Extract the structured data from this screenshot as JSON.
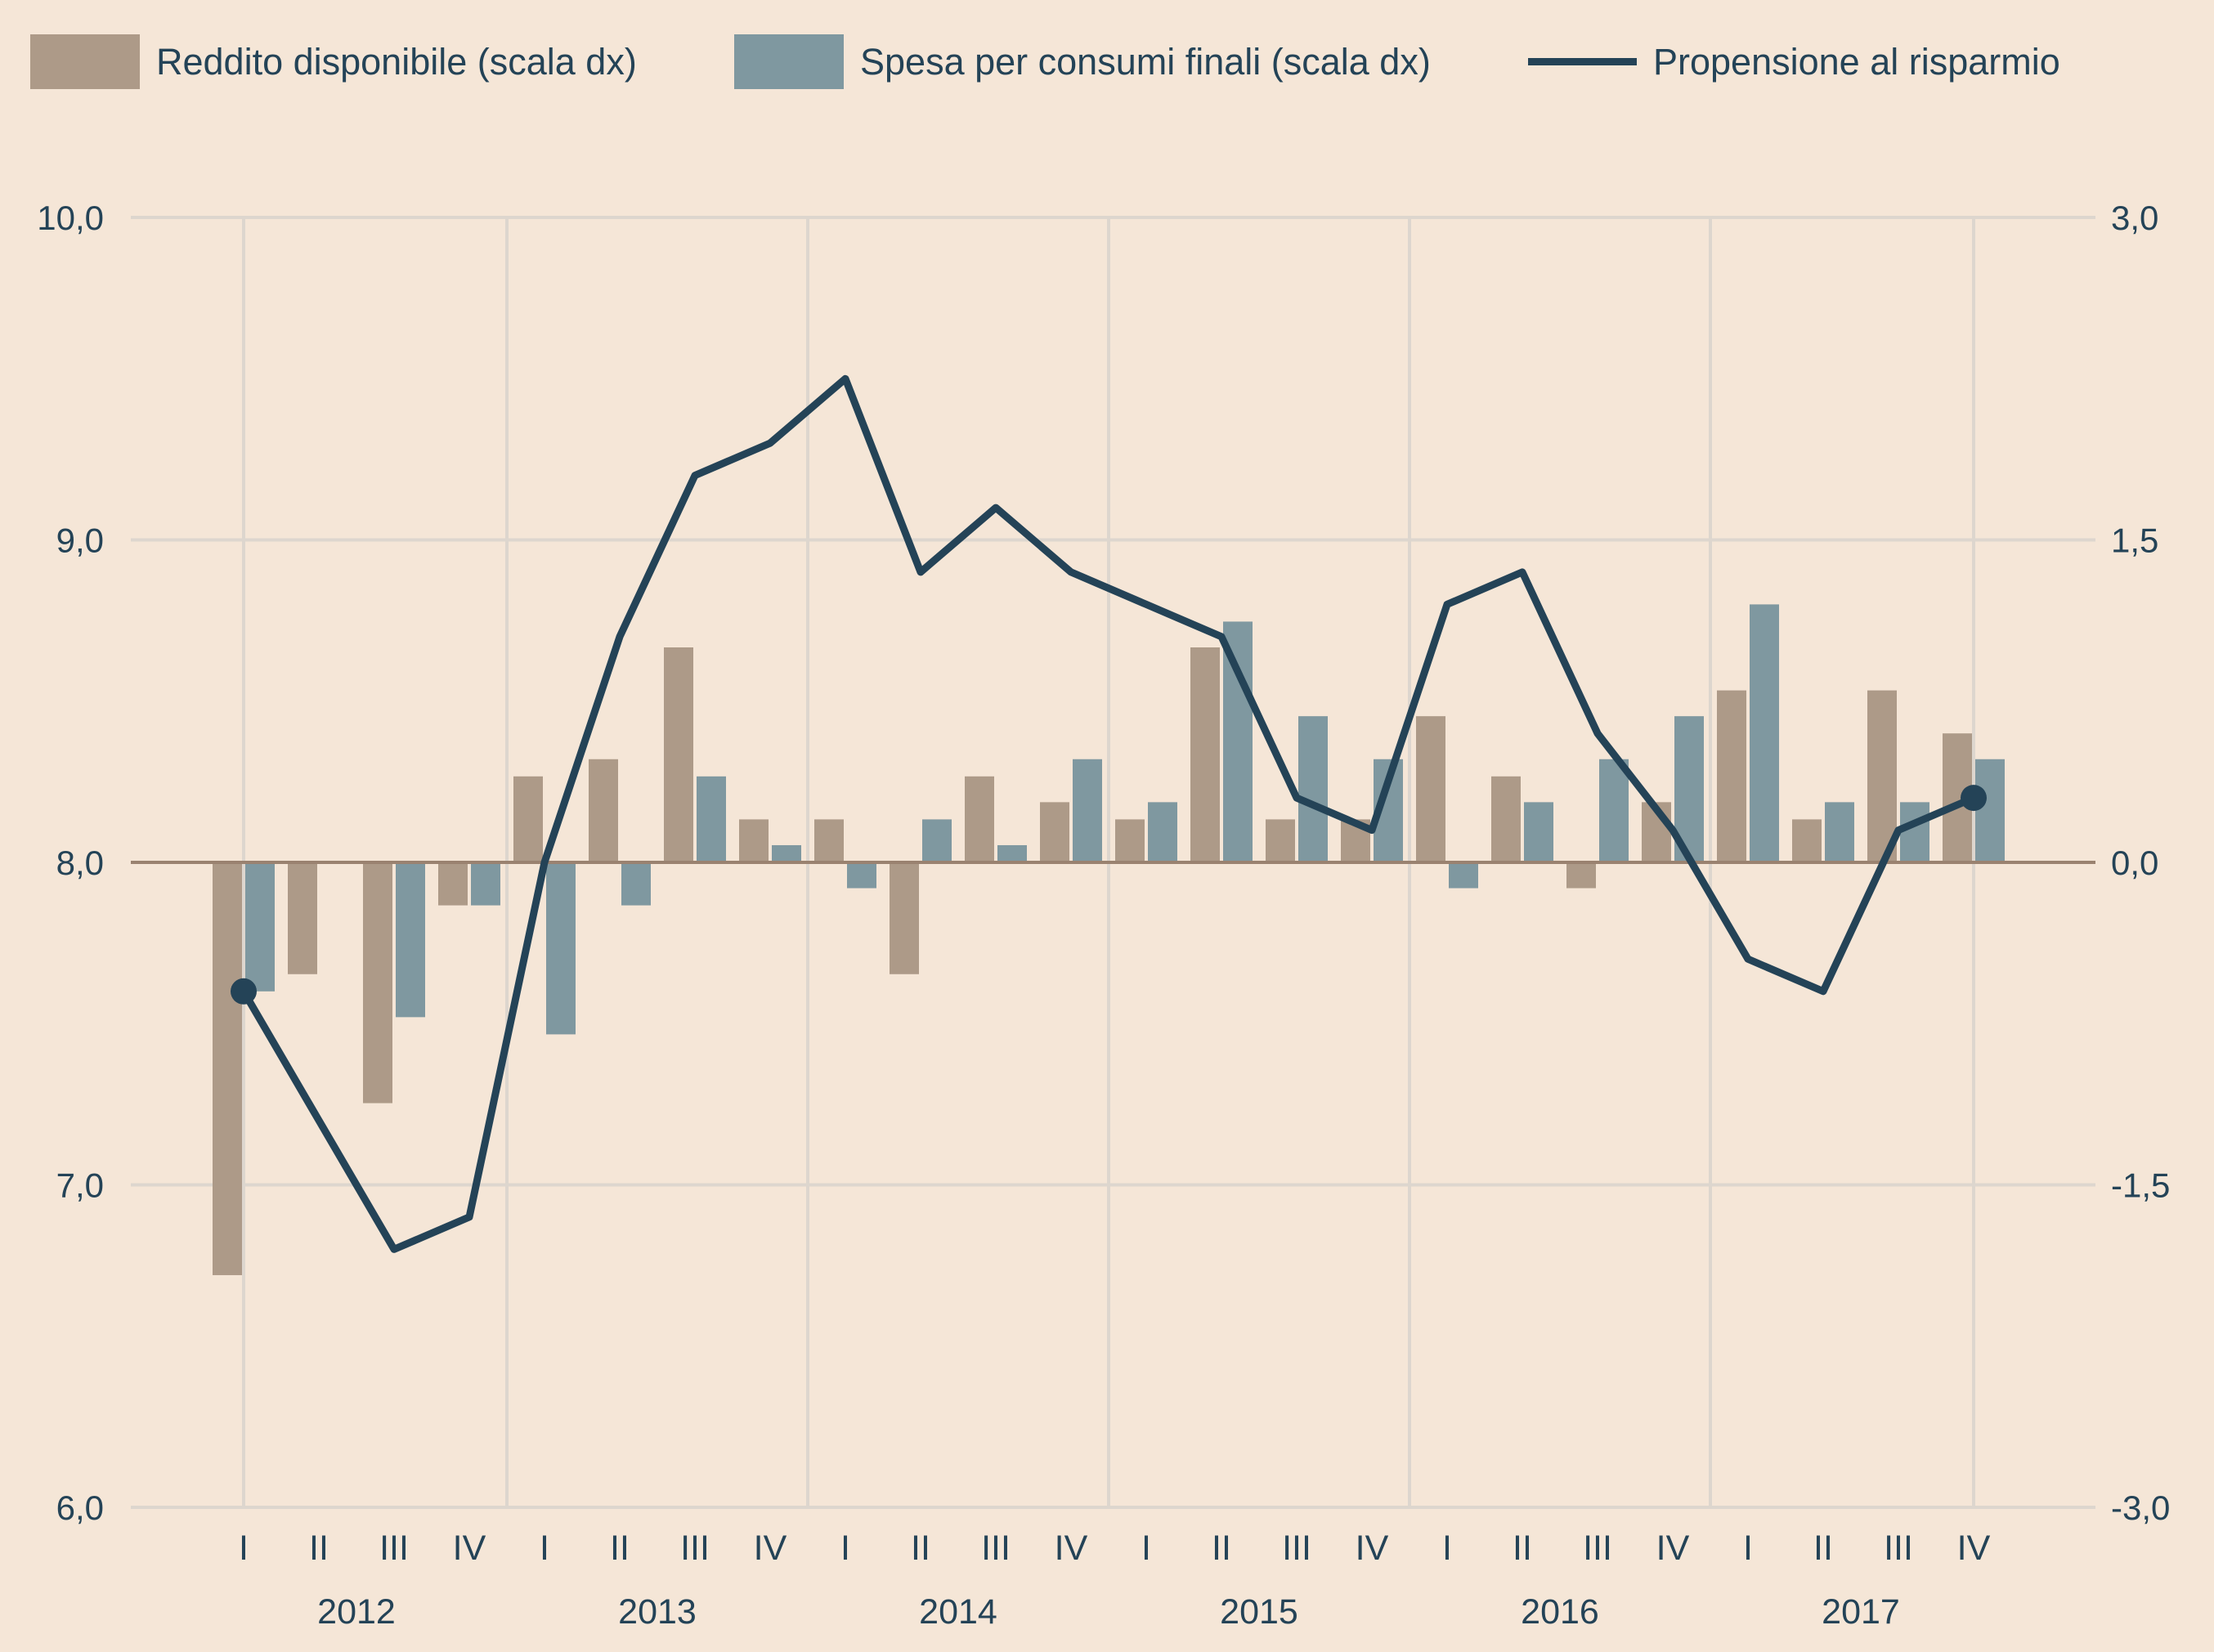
{
  "colors": {
    "background": "#F5E6D7",
    "reddito": "#AD9A88",
    "spesa": "#7F98A0",
    "line": "#244357",
    "grid": "#DDD6CE",
    "zero_line": "#9A8270",
    "text": "#244357"
  },
  "legend": {
    "items": [
      {
        "label": "Reddito disponibile (scala dx)",
        "type": "bar",
        "color": "#AD9A88"
      },
      {
        "label": "Spesa per consumi finali (scala dx)",
        "type": "bar",
        "color": "#7F98A0"
      },
      {
        "label": "Propensione al risparmio",
        "type": "line",
        "color": "#244357"
      }
    ]
  },
  "chart_data": {
    "type": "bar",
    "title": "",
    "xlabel": "",
    "ylabel": "",
    "legend_position": "top",
    "grid": true,
    "categories": [
      "I",
      "II",
      "III",
      "IV",
      "I",
      "II",
      "III",
      "IV",
      "I",
      "II",
      "III",
      "IV",
      "I",
      "II",
      "III",
      "IV",
      "I",
      "II",
      "III",
      "IV",
      "I",
      "II",
      "III",
      "IV"
    ],
    "years": [
      "2012",
      "2013",
      "2014",
      "2015",
      "2016",
      "2017"
    ],
    "left_axis": {
      "ylim": [
        6.0,
        10.0
      ],
      "ticks": [
        "10,0",
        "9,0",
        "8,0",
        "7,0",
        "6,0"
      ],
      "tick_values": [
        10,
        9,
        8,
        7,
        6
      ]
    },
    "right_axis": {
      "ylim": [
        -3.0,
        3.0
      ],
      "ticks": [
        "3,0",
        "1,5",
        "0,0",
        "-1,5",
        "-3,0"
      ],
      "tick_values": [
        3,
        1.5,
        0,
        -1.5,
        -3
      ]
    },
    "series": [
      {
        "name": "Reddito disponibile (scala dx)",
        "type": "bar",
        "axis": "right",
        "values": [
          -1.92,
          -0.52,
          -1.12,
          -0.2,
          0.4,
          0.48,
          1.0,
          0.2,
          0.2,
          -0.52,
          0.4,
          0.28,
          0.2,
          1.0,
          0.2,
          0.2,
          0.68,
          0.4,
          -0.12,
          0.28,
          0.8,
          0.2,
          0.8,
          0.6
        ]
      },
      {
        "name": "Spesa per consumi finali (scala dx)",
        "type": "bar",
        "axis": "right",
        "values": [
          -0.6,
          0.0,
          -0.72,
          -0.2,
          -0.8,
          -0.2,
          0.4,
          0.08,
          -0.12,
          0.2,
          0.08,
          0.48,
          0.28,
          1.12,
          0.68,
          0.48,
          -0.12,
          0.28,
          0.48,
          0.68,
          1.2,
          0.28,
          0.28,
          0.48
        ]
      },
      {
        "name": "Propensione al risparmio",
        "type": "line",
        "axis": "left",
        "values": [
          7.6,
          7.2,
          6.8,
          6.9,
          8.0,
          8.7,
          9.2,
          9.3,
          9.5,
          8.9,
          9.1,
          8.9,
          8.8,
          8.7,
          8.2,
          8.1,
          8.8,
          8.9,
          8.4,
          8.1,
          7.7,
          7.6,
          8.1,
          8.2
        ],
        "markers": "first-and-last"
      }
    ]
  }
}
